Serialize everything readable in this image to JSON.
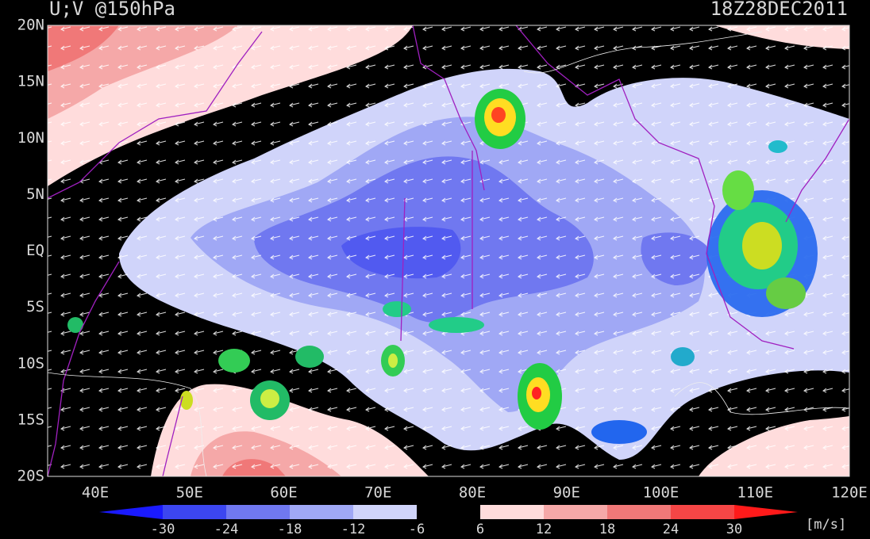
{
  "title": "U;V @150hPa",
  "time": "18Z28DEC2011",
  "lat_labels": [
    "20N",
    "15N",
    "10N",
    "5N",
    "EQ",
    "5S",
    "10S",
    "15S",
    "20S"
  ],
  "lon_labels": [
    "40E",
    "50E",
    "60E",
    "70E",
    "80E",
    "90E",
    "100E",
    "110E",
    "120E"
  ],
  "colorbar": {
    "levels": [
      -30,
      -24,
      -18,
      -12,
      -6,
      6,
      12,
      18,
      24,
      30
    ],
    "colors": [
      "#1a1aff",
      "#3c46f0",
      "#7078f0",
      "#a0a8f5",
      "#d0d4fa",
      "#000000",
      "#ffdcdc",
      "#f5a8a8",
      "#f07878",
      "#f54646",
      "#ff1a1a"
    ]
  },
  "units": "[m/s]"
}
